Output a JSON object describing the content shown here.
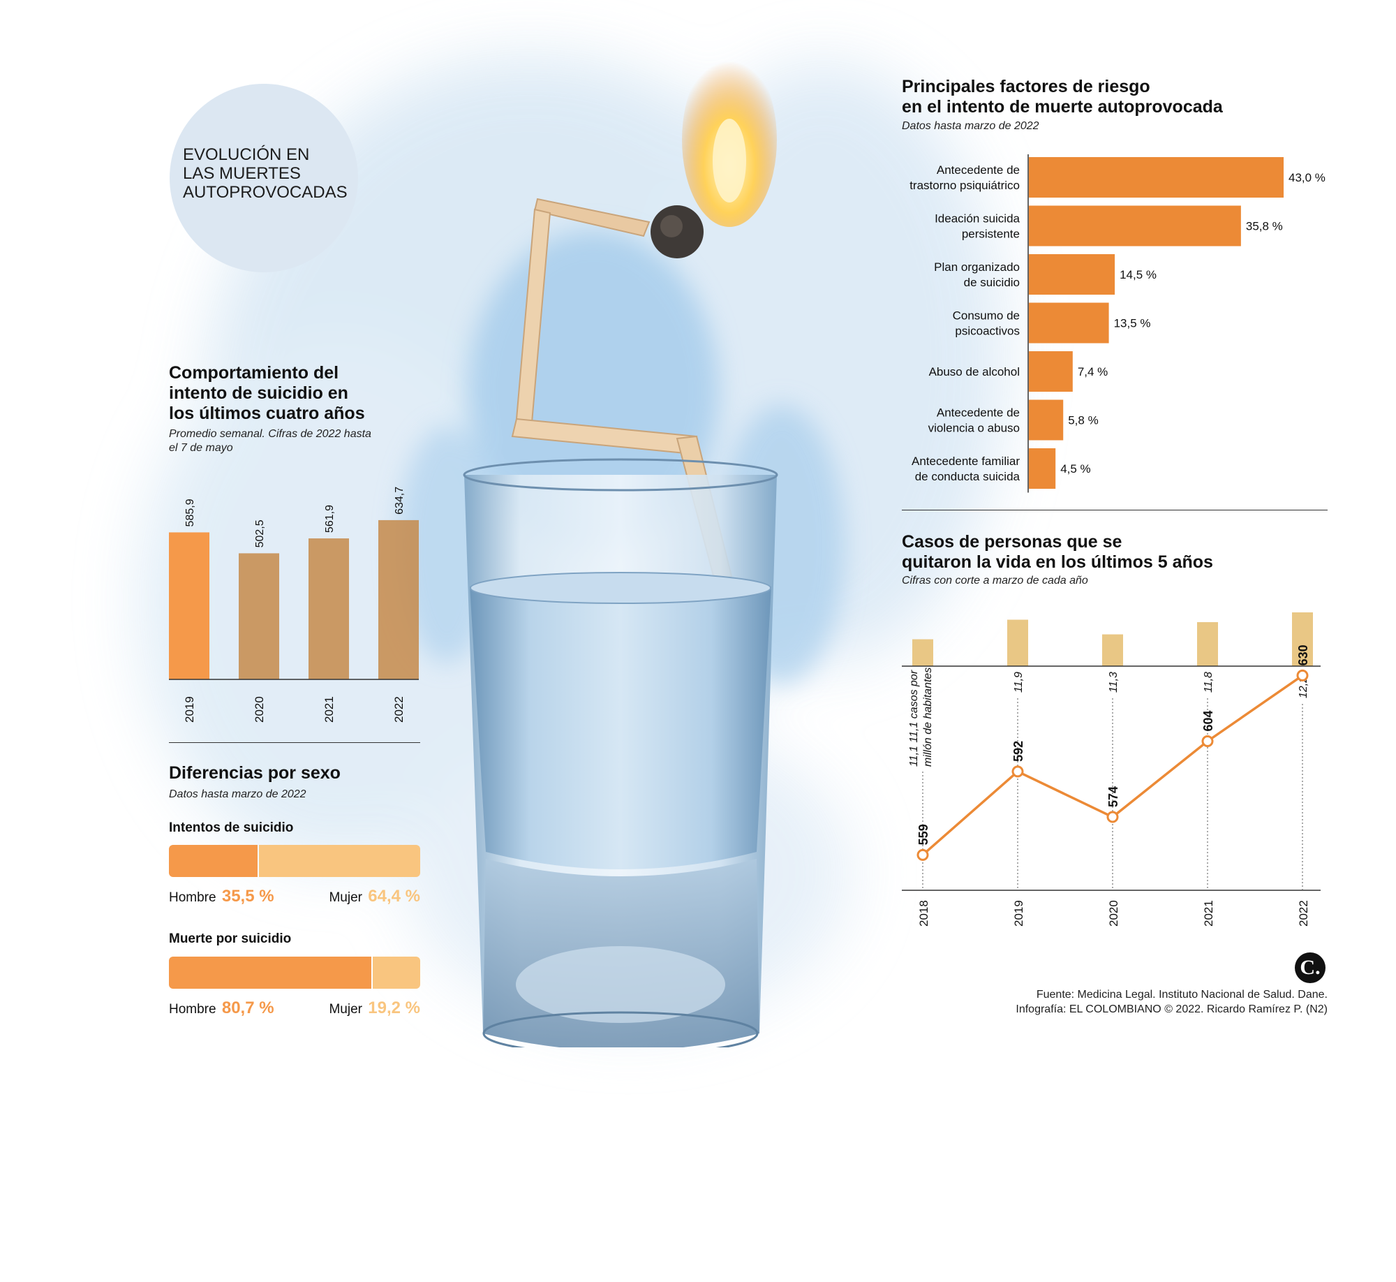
{
  "circle_title": [
    "EVOLUCIÓN EN",
    "LAS MUERTES",
    "AUTOPROVOCADAS"
  ],
  "colors": {
    "orange": "#F5994A",
    "orange_dark": "#EC8A36",
    "brown": "#C68A4A",
    "light_orange": "#F9C57F",
    "tan": "#E7C178",
    "circle": "#DCE7F2",
    "wash": "#CFE3F3"
  },
  "attempts": {
    "title": [
      "Comportamiento del",
      "intento de suicidio en",
      "los últimos cuatro años"
    ],
    "subtitle": [
      "Promedio semanal. Cifras de 2022 hasta",
      "el 7 de mayo"
    ]
  },
  "sex": {
    "title": "Diferencias por sexo",
    "subtitle": "Datos hasta marzo de 2022",
    "attempts_label": "Intentos de suicidio",
    "attempts_hombre": "Hombre",
    "attempts_hombre_value": "35,5 %",
    "attempts_mujer": "Mujer",
    "attempts_mujer_value": "64,4 %",
    "deaths_label": "Muerte por suicidio",
    "deaths_hombre": "Hombre",
    "deaths_hombre_value": "80,7 %",
    "deaths_mujer": "Mujer",
    "deaths_mujer_value": "19,2 %"
  },
  "risk": {
    "title": [
      "Principales factores de riesgo",
      "en el intento de muerte autoprovocada"
    ],
    "subtitle": "Datos hasta marzo de 2022"
  },
  "cases": {
    "title": [
      "Casos de personas que se",
      "quitaron la vida en los últimos 5 años"
    ],
    "subtitle": "Cifras con corte a marzo de cada año",
    "rate_note": [
      "11,1 casos por",
      "millón de habitantes"
    ]
  },
  "footer": {
    "source": "Fuente: Medicina Legal. Instituto Nacional de Salud. Dane.",
    "credit": "Infografía: EL COLOMBIANO © 2022. Ricardo Ramírez P. (N2)",
    "logo": "C."
  },
  "chart_data": [
    {
      "type": "bar",
      "title": "Comportamiento del intento de suicidio en los últimos cuatro años",
      "categories": [
        "2019",
        "2020",
        "2021",
        "2022"
      ],
      "values": [
        585.9,
        502.5,
        561.9,
        634.7
      ],
      "labels": [
        "585,9",
        "502,5",
        "561,9",
        "634,7"
      ],
      "ylim": [
        0,
        640
      ]
    },
    {
      "type": "bar",
      "title": "Intentos de suicidio",
      "categories": [
        "Hombre",
        "Mujer"
      ],
      "values": [
        35.5,
        64.4
      ]
    },
    {
      "type": "bar",
      "title": "Muerte por suicidio",
      "categories": [
        "Hombre",
        "Mujer"
      ],
      "values": [
        80.7,
        19.2
      ]
    },
    {
      "type": "bar",
      "orientation": "horizontal",
      "title": "Principales factores de riesgo en el intento de muerte autoprovocada",
      "categories": [
        [
          "Antecedente de",
          "trastorno psiquiátrico"
        ],
        [
          "Ideación suicida",
          "persistente"
        ],
        [
          "Plan organizado",
          "de suicidio"
        ],
        [
          "Consumo de",
          "psicoactivos"
        ],
        [
          "Abuso de alcohol"
        ],
        [
          "Antecedente de",
          "violencia o abuso"
        ],
        [
          "Antecedente familiar",
          "de conducta suicida"
        ]
      ],
      "values": [
        43.0,
        35.8,
        14.5,
        13.5,
        7.4,
        5.8,
        4.5
      ],
      "labels": [
        "43,0 %",
        "35,8 %",
        "14,5 %",
        "13,5 %",
        "7,4 %",
        "5,8 %",
        "4,5 %"
      ],
      "xlim": [
        0,
        43
      ]
    },
    {
      "type": "line",
      "title": "Casos de personas que se quitaron la vida en los últimos 5 años",
      "x": [
        "2018",
        "2019",
        "2020",
        "2021",
        "2022"
      ],
      "values": [
        559,
        592,
        574,
        604,
        630
      ],
      "labels": [
        "559",
        "592",
        "574",
        "604",
        "630"
      ],
      "rates": [
        11.1,
        11.9,
        11.3,
        11.8,
        12.2
      ],
      "rate_labels": [
        "11,1",
        "11,9",
        "11,3",
        "11,8",
        "12,2"
      ],
      "ylim": [
        545,
        650
      ]
    }
  ]
}
